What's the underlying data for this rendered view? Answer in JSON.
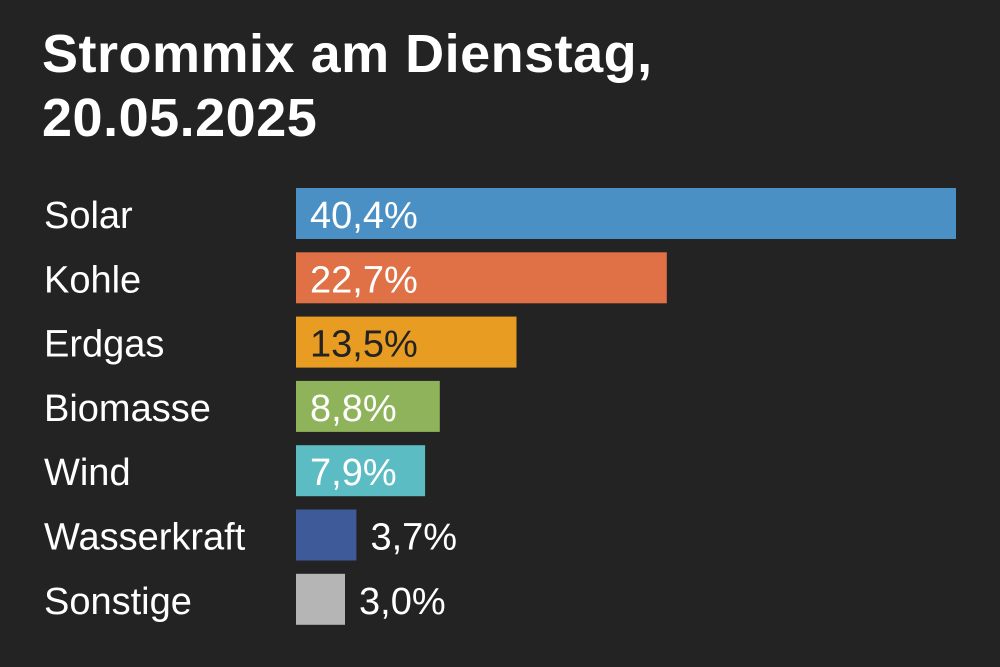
{
  "chart_data": {
    "type": "bar",
    "orientation": "horizontal",
    "title_lines": [
      "Strommix am Dienstag,",
      "20.05.2025"
    ],
    "categories": [
      "Solar",
      "Kohle",
      "Erdgas",
      "Biomasse",
      "Wind",
      "Wasserkraft",
      "Sonstige"
    ],
    "values": [
      40.4,
      22.7,
      13.5,
      8.8,
      7.9,
      3.7,
      3.0
    ],
    "value_labels": [
      "40,4%",
      "22,7%",
      "13,5%",
      "8,8%",
      "7,9%",
      "3,7%",
      "3,0%"
    ],
    "unit": "%",
    "colors": [
      "#4a90c4",
      "#e07046",
      "#e89c22",
      "#8fb35a",
      "#5bbcc3",
      "#3f5a98",
      "#b5b5b5"
    ],
    "label_colors": [
      "#ffffff",
      "#ffffff",
      "#232323",
      "#ffffff",
      "#ffffff",
      "#ffffff",
      "#ffffff"
    ],
    "background": "#232323",
    "xlim": [
      0,
      40.4
    ],
    "grid": false,
    "legend": "none"
  }
}
